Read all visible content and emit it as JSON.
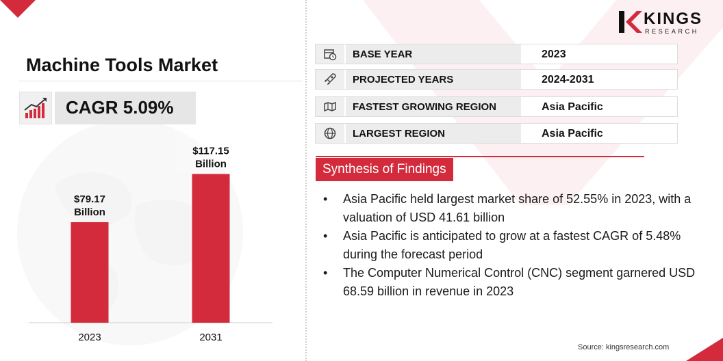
{
  "colors": {
    "accent": "#d42b3c",
    "bar": "#d42b3c",
    "panel": "#e6e6e6"
  },
  "logo": {
    "name": "KINGS",
    "subtitle": "RESEARCH",
    "icon": "kings-k-logo-icon"
  },
  "title": "Machine Tools Market",
  "cagr": {
    "icon": "trend-up-chart-icon",
    "text": "CAGR 5.09%"
  },
  "chart_data": {
    "type": "bar",
    "title": "",
    "xlabel": "",
    "ylabel": "",
    "categories": [
      "2023",
      "2031"
    ],
    "values": [
      79.17,
      117.15
    ],
    "value_labels": [
      {
        "line1": "$79.17",
        "line2": "Billion"
      },
      {
        "line1": "$117.15",
        "line2": "Billion"
      }
    ],
    "unit": "USD Billion",
    "ylim": [
      0,
      140
    ],
    "grid": false,
    "legend": "none"
  },
  "info_rows": [
    {
      "icon": "calendar-clock-icon",
      "label": "BASE YEAR",
      "value": "2023"
    },
    {
      "icon": "rocket-icon",
      "label": "PROJECTED YEARS",
      "value": "2024-2031"
    },
    {
      "icon": "region-map-icon",
      "label": "FASTEST GROWING REGION",
      "value": "Asia Pacific"
    },
    {
      "icon": "globe-icon",
      "label": "LARGEST REGION",
      "value": "Asia Pacific"
    }
  ],
  "synthesis": {
    "title": "Synthesis of Findings",
    "bullets": [
      "Asia Pacific held largest market share of 52.55% in 2023, with a valuation of USD 41.61 billion",
      "Asia Pacific is anticipated to grow at a fastest CAGR of 5.48% during the forecast period",
      "The Computer Numerical Control (CNC) segment garnered USD 68.59 billion in revenue in 2023"
    ]
  },
  "source": "Source: kingsresearch.com"
}
